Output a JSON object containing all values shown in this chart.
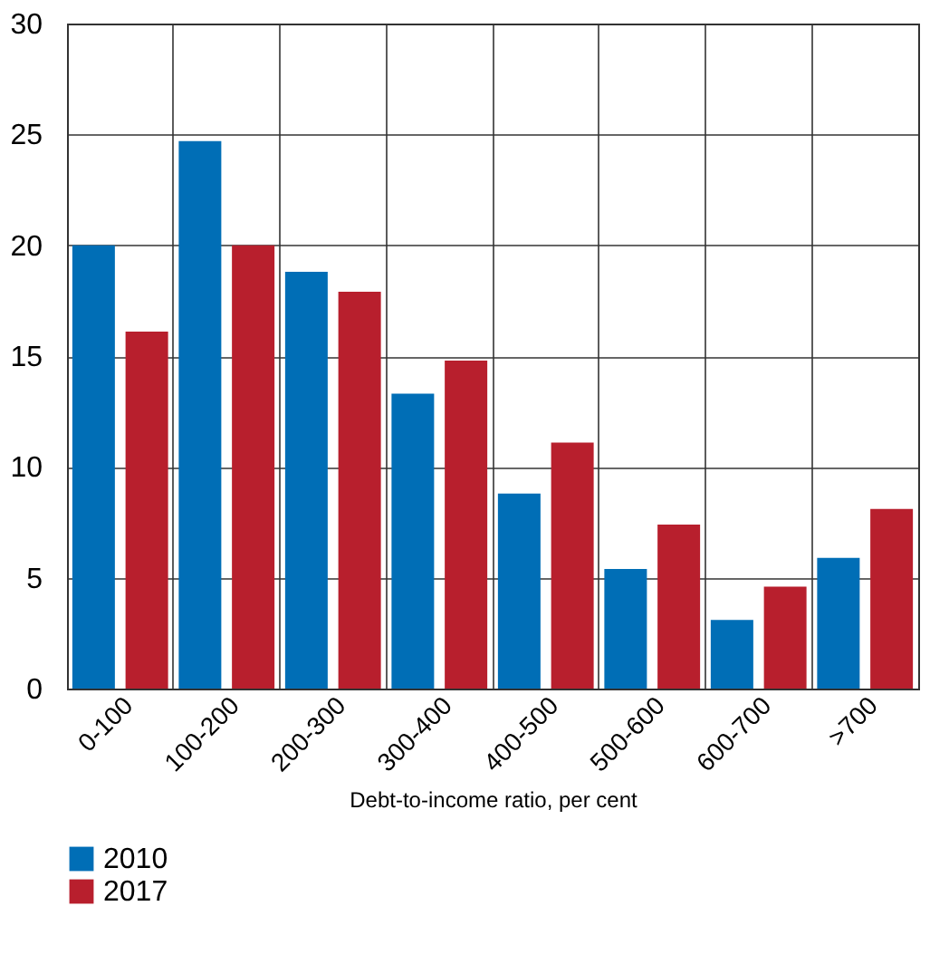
{
  "chart_data": {
    "type": "bar",
    "xlabel": "Debt-to-income ratio, per cent",
    "categories": [
      "0-100",
      "100-200",
      "200-300",
      "300-400",
      "400-500",
      "500-600",
      "600-700",
      ">700"
    ],
    "series": [
      {
        "name": "2010",
        "color": "#006eb6",
        "values": [
          20,
          24.7,
          18.8,
          13.3,
          8.8,
          5.4,
          3.1,
          5.9
        ]
      },
      {
        "name": "2017",
        "color": "#b81f2d",
        "values": [
          16.1,
          20,
          17.9,
          14.8,
          11.1,
          7.4,
          4.6,
          8.1
        ]
      }
    ],
    "ylim": [
      0,
      30
    ],
    "yticks": [
      0,
      5,
      10,
      15,
      20,
      25,
      30
    ],
    "grid": true,
    "legend": "bottom left"
  }
}
